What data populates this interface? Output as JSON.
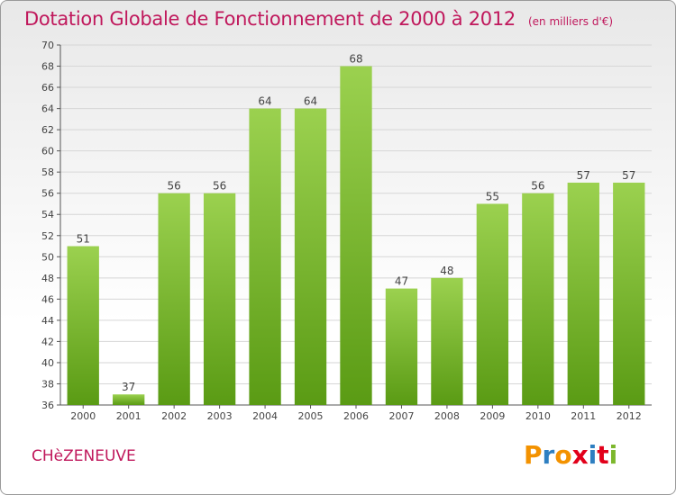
{
  "header": {
    "title": "Dotation Globale de Fonctionnement de 2000 à 2012",
    "subtitle": "(en milliers d'€)"
  },
  "footer": {
    "commune": "CHèZENEUVE",
    "logo_letters": [
      "P",
      "r",
      "o",
      "x",
      "i",
      "t",
      "i"
    ],
    "logo_colors": [
      "#f39200",
      "#2e7fc1",
      "#f39200",
      "#e2001a",
      "#2e7fc1",
      "#e2001a",
      "#7cb72c"
    ]
  },
  "chart_data": {
    "type": "bar",
    "categories": [
      "2000",
      "2001",
      "2002",
      "2003",
      "2004",
      "2005",
      "2006",
      "2007",
      "2008",
      "2009",
      "2010",
      "2011",
      "2012"
    ],
    "values": [
      51,
      37,
      56,
      56,
      64,
      64,
      68,
      47,
      48,
      55,
      56,
      57,
      57
    ],
    "ylim": [
      36,
      70
    ],
    "yticks": [
      36,
      38,
      40,
      42,
      44,
      46,
      48,
      50,
      52,
      54,
      56,
      58,
      60,
      62,
      64,
      66,
      68,
      70
    ],
    "grid": true,
    "bar_color_top": "#9bd14f",
    "bar_color_bottom": "#5a9b14",
    "title_color": "#c0185c"
  }
}
